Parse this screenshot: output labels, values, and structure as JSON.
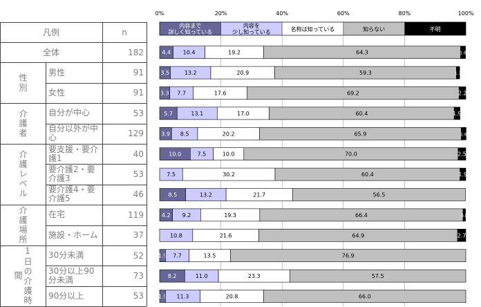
{
  "table": {
    "header_label": "凡例",
    "header_n": "n",
    "groups": [
      {
        "label": "",
        "rows": [
          0
        ]
      },
      {
        "label": "性別",
        "rows": [
          1,
          2
        ]
      },
      {
        "label": "介護者",
        "rows": [
          3,
          4
        ]
      },
      {
        "label": "介護レベル",
        "rows": [
          5,
          6,
          7
        ]
      },
      {
        "label": "介護場所",
        "rows": [
          8,
          9
        ]
      },
      {
        "label": "1日の介護時間",
        "rows": [
          10,
          11,
          12
        ]
      }
    ]
  },
  "chart_data": {
    "type": "bar",
    "orientation": "horizontal",
    "stacked": true,
    "xlim": [
      0,
      100
    ],
    "x_ticks": [
      "0%",
      "20%",
      "40%",
      "60%",
      "80%",
      "100%"
    ],
    "categories": [
      "全体",
      "男性",
      "女性",
      "自分が中心",
      "自分以外が中心",
      "要支援・要介護1",
      "要介護2・要介護3",
      "要介護4・要介護5",
      "在宅",
      "施設・ホーム",
      "30分未満",
      "30分以上90分未満",
      "90分以上"
    ],
    "n": [
      182,
      91,
      91,
      53,
      129,
      40,
      53,
      46,
      119,
      37,
      52,
      73,
      53
    ],
    "series": [
      {
        "name": "内容まで詳しく知っている",
        "color": "#666699",
        "text_color": "#ffffff",
        "values": [
          4.4,
          3.5,
          3.3,
          5.7,
          3.9,
          10.0,
          0,
          8.5,
          4.2,
          0,
          1.9,
          8.2,
          1.9
        ]
      },
      {
        "name": "内容を少し知っている",
        "color": "#ccccff",
        "text_color": "#000000",
        "values": [
          10.4,
          13.2,
          7.7,
          13.1,
          8.5,
          7.5,
          7.5,
          13.2,
          9.2,
          10.8,
          7.7,
          11.0,
          11.3
        ]
      },
      {
        "name": "名称は知っている",
        "color": "#ffffff",
        "text_color": "#000000",
        "values": [
          19.2,
          20.9,
          17.6,
          17.0,
          20.2,
          10.0,
          30.2,
          21.7,
          19.3,
          21.6,
          13.5,
          23.3,
          20.8
        ]
      },
      {
        "name": "知らない",
        "color": "#c0c0c0",
        "text_color": "#000000",
        "values": [
          64.3,
          59.3,
          69.2,
          60.4,
          65.9,
          70.0,
          60.4,
          56.5,
          66.4,
          64.9,
          76.9,
          57.5,
          66.0
        ]
      },
      {
        "name": "不明",
        "color": "#000000",
        "text_color": "#ffffff",
        "values": [
          1.6,
          1.1,
          2.2,
          1.9,
          1.6,
          2.5,
          1.9,
          0,
          0.8,
          2.7,
          0,
          0,
          0
        ]
      }
    ]
  }
}
